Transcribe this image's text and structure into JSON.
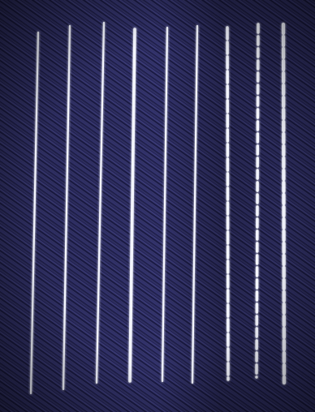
{
  "image": {
    "subject": "",
    "colors": {
      "fabric_dark": "#0e0e26",
      "fabric_mid": "#25255a",
      "fabric_light": "#4a4a8c",
      "thread": "#f4f6ff",
      "thread_glow": "#c9ceff"
    },
    "stitch_rows": [
      {
        "style": "straight-fine"
      },
      {
        "style": "straight-fine"
      },
      {
        "style": "straight-fine"
      },
      {
        "style": "straight-bold"
      },
      {
        "style": "straight-fine"
      },
      {
        "style": "straight-fine"
      },
      {
        "style": "dashed-long"
      },
      {
        "style": "dashed-medium"
      },
      {
        "style": "dashed-bold"
      }
    ]
  }
}
